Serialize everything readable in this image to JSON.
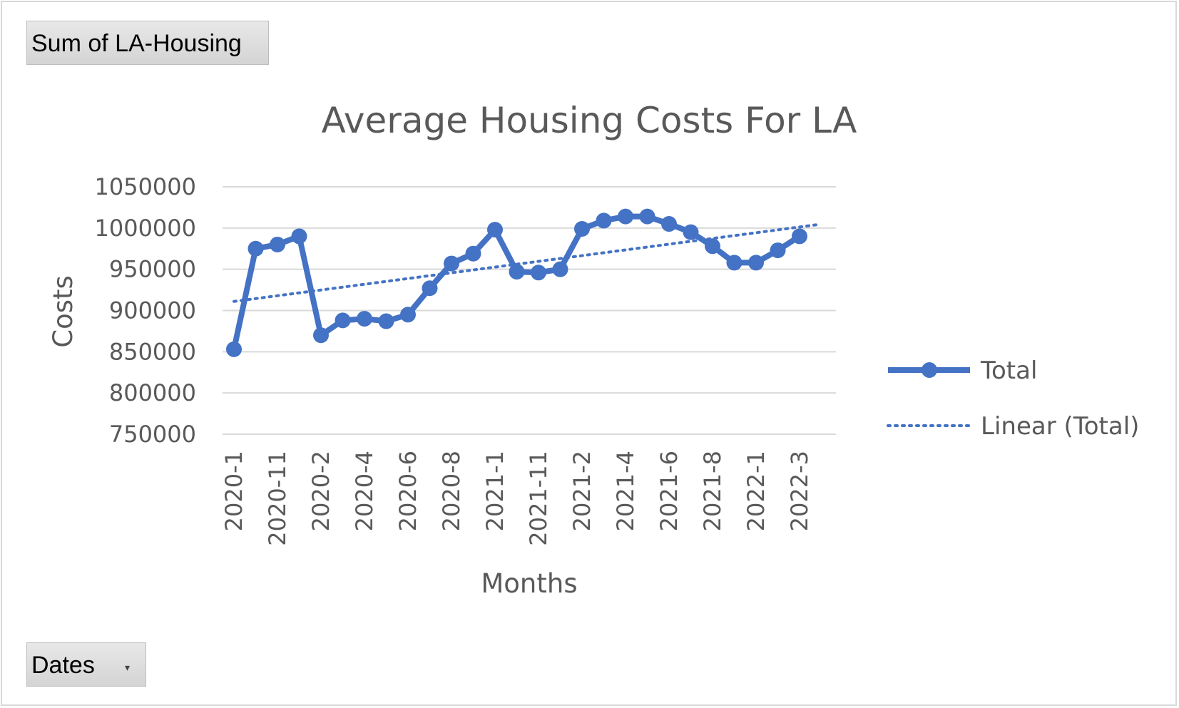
{
  "pivot": {
    "value_field": "Sum of LA-Housing",
    "axis_field": "Dates",
    "dropdown_glyph": "▾"
  },
  "colors": {
    "series": "#4472C4",
    "grid": "#d9d9d9",
    "text": "#595959"
  },
  "chart_data": {
    "type": "line",
    "title": "Average Housing Costs For LA",
    "xlabel": "Months",
    "ylabel": "Costs",
    "ylim": [
      750000,
      1050000
    ],
    "yticks": [
      750000,
      800000,
      850000,
      900000,
      950000,
      1000000,
      1050000
    ],
    "grid": true,
    "legend": "right",
    "x_tick_labels": [
      "2020-1",
      "2020-11",
      "2020-2",
      "2020-4",
      "2020-6",
      "2020-8",
      "2021-1",
      "2021-11",
      "2021-2",
      "2021-4",
      "2021-6",
      "2021-8",
      "2022-1",
      "2022-3"
    ],
    "series": [
      {
        "name": "Total",
        "values": [
          853000,
          975000,
          980000,
          990000,
          870000,
          888000,
          890000,
          887000,
          895000,
          927000,
          957000,
          969000,
          998000,
          947000,
          946000,
          950000,
          999000,
          1009000,
          1014000,
          1014000,
          1005000,
          995000,
          978000,
          958000,
          958000,
          973000,
          990000
        ]
      }
    ],
    "trendline": {
      "name": "Linear (Total)",
      "type": "linear",
      "start": 911000,
      "end": 1004000
    }
  }
}
